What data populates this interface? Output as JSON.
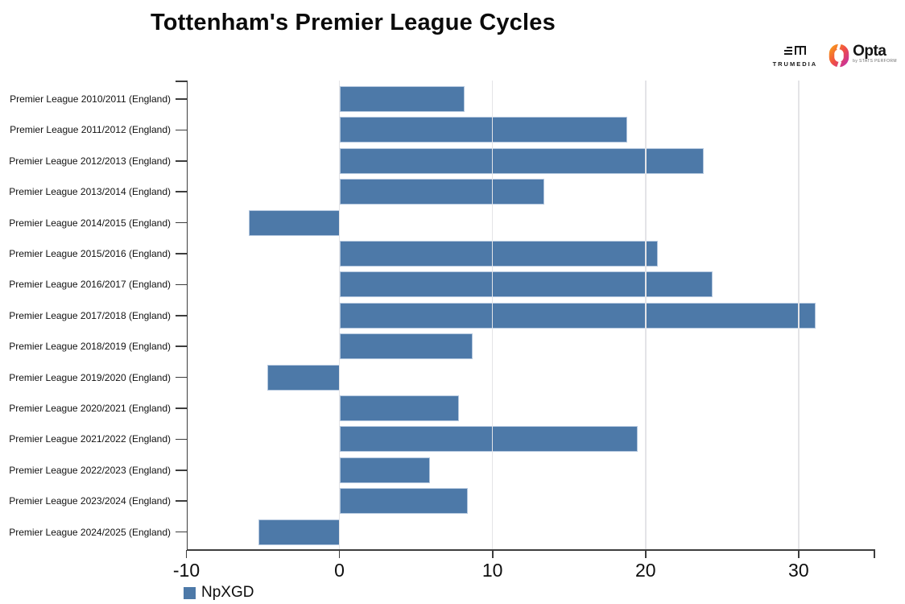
{
  "header": {
    "title": "Tottenham's Premier League Cycles",
    "logos": {
      "trumedia_label": "TRUMEDIA",
      "opta_label": "Opta",
      "opta_sublabel": "by STATS PERFORM"
    }
  },
  "legend": {
    "label": "NpXGD",
    "swatch_color": "#4d79a8"
  },
  "chart_data": {
    "type": "bar",
    "orientation": "horizontal",
    "title": "Tottenham's Premier League Cycles",
    "series_name": "NpXGD",
    "categories": [
      "Premier League 2010/2011 (England)",
      "Premier League 2011/2012 (England)",
      "Premier League 2012/2013 (England)",
      "Premier League 2013/2014 (England)",
      "Premier League 2014/2015 (England)",
      "Premier League 2015/2016 (England)",
      "Premier League 2016/2017 (England)",
      "Premier League 2017/2018 (England)",
      "Premier League 2018/2019 (England)",
      "Premier League 2019/2020 (England)",
      "Premier League 2020/2021 (England)",
      "Premier League 2021/2022 (England)",
      "Premier League 2022/2023 (England)",
      "Premier League 2023/2024 (England)",
      "Premier League 2024/2025 (England)"
    ],
    "values": [
      8.2,
      18.8,
      23.8,
      13.4,
      -5.9,
      20.8,
      24.4,
      31.1,
      8.7,
      -4.7,
      7.8,
      19.5,
      5.9,
      8.4,
      -5.3
    ],
    "xlabel": "",
    "ylabel": "",
    "xlim": [
      -10,
      34.9
    ],
    "xticks": [
      -10,
      0,
      10,
      20,
      30
    ],
    "gridline_values": [
      0,
      10,
      20,
      30
    ],
    "grid": true,
    "legend_position": "bottom-left",
    "bar_color": "#4d79a8",
    "bar_border_color": "#b5c8df",
    "axis_color": "#3d3d3d",
    "gridline_color": "#e4e4e7"
  }
}
